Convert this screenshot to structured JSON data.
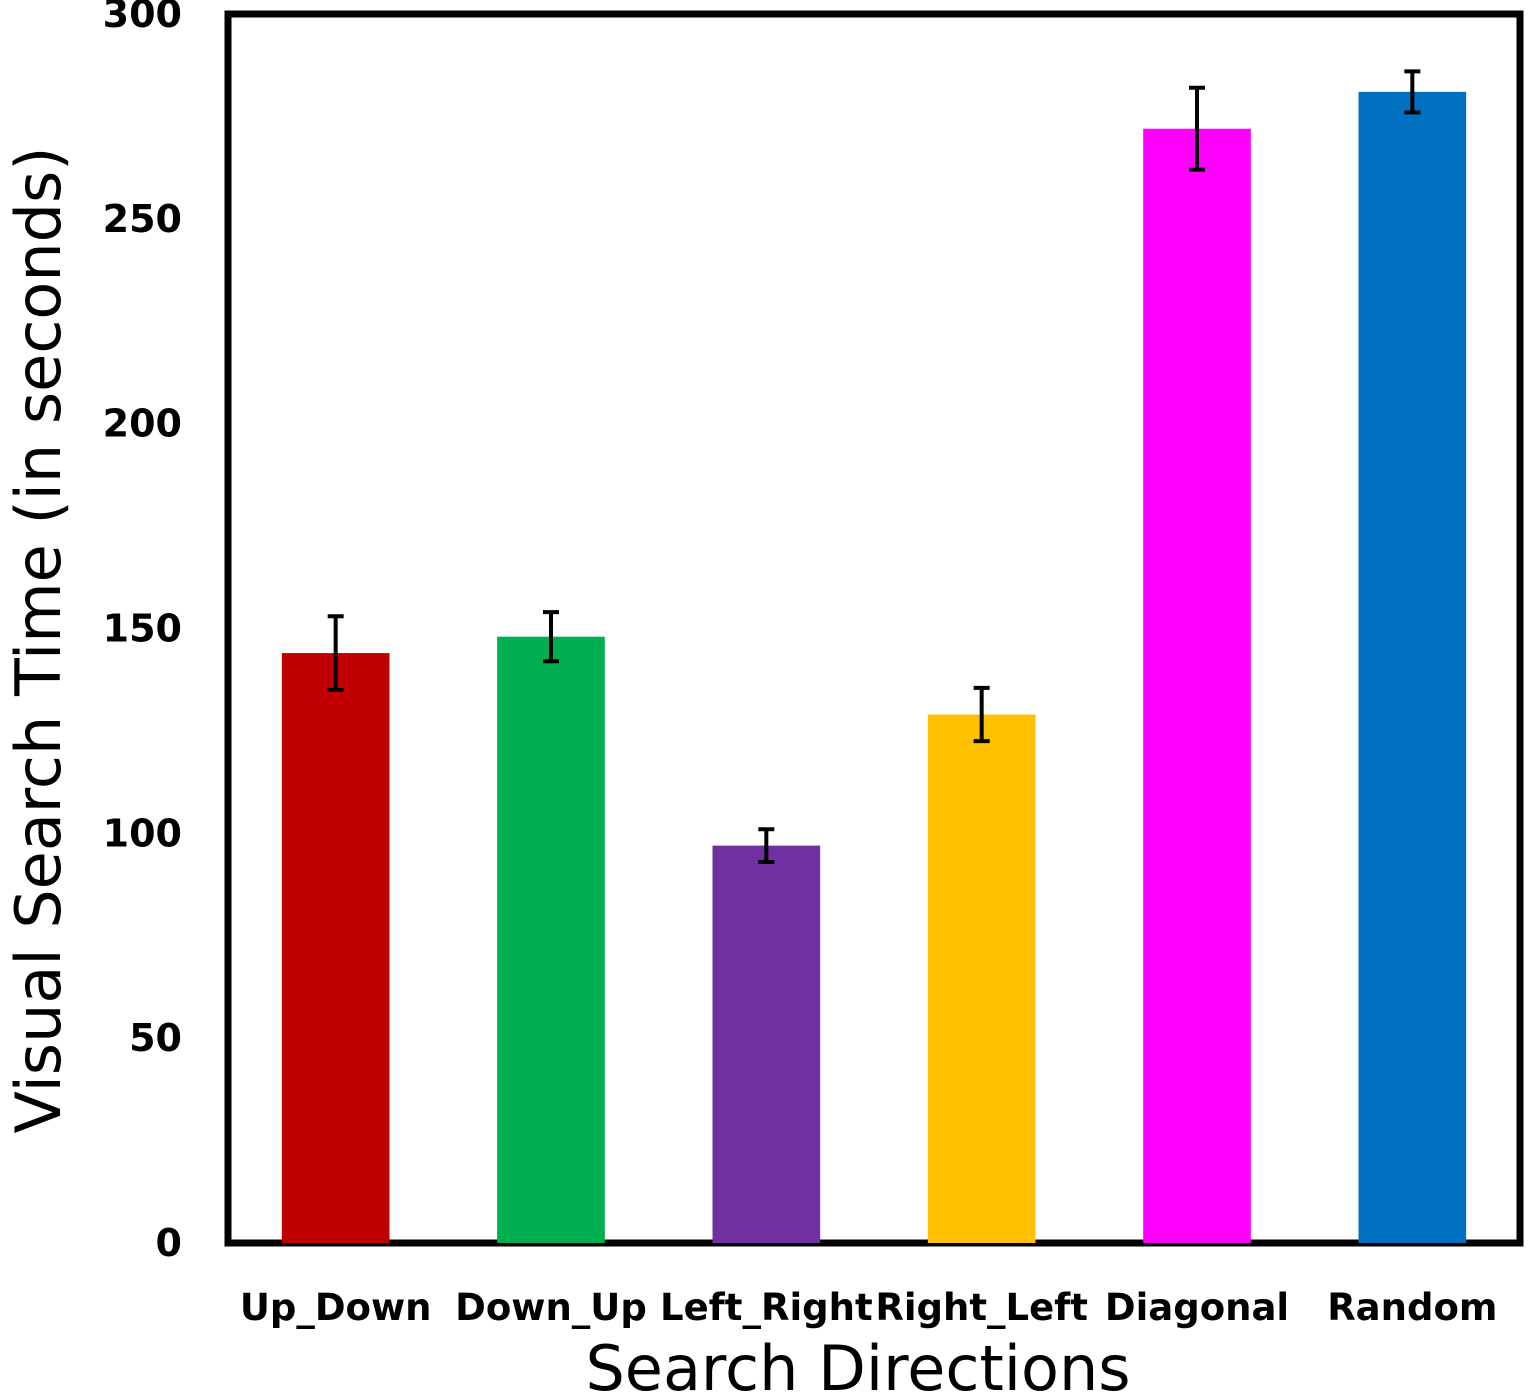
{
  "chart_data": {
    "type": "bar",
    "title": "",
    "xlabel": "Search Directions",
    "ylabel": "Visual Search Time (in seconds)",
    "ylim": [
      0,
      300
    ],
    "yticks": [
      0,
      50,
      100,
      150,
      200,
      250,
      300
    ],
    "grid": false,
    "legend": "none",
    "categories": [
      "Up_Down",
      "Down_Up",
      "Left_Right",
      "Right_Left",
      "Diagonal",
      "Random"
    ],
    "values": [
      144,
      148,
      97,
      129,
      272,
      281
    ],
    "error": [
      9,
      6,
      4,
      6.5,
      10,
      5
    ],
    "colors": [
      "#C00000",
      "#00B050",
      "#7030A0",
      "#FFC000",
      "#FF00FF",
      "#0070C0"
    ]
  }
}
